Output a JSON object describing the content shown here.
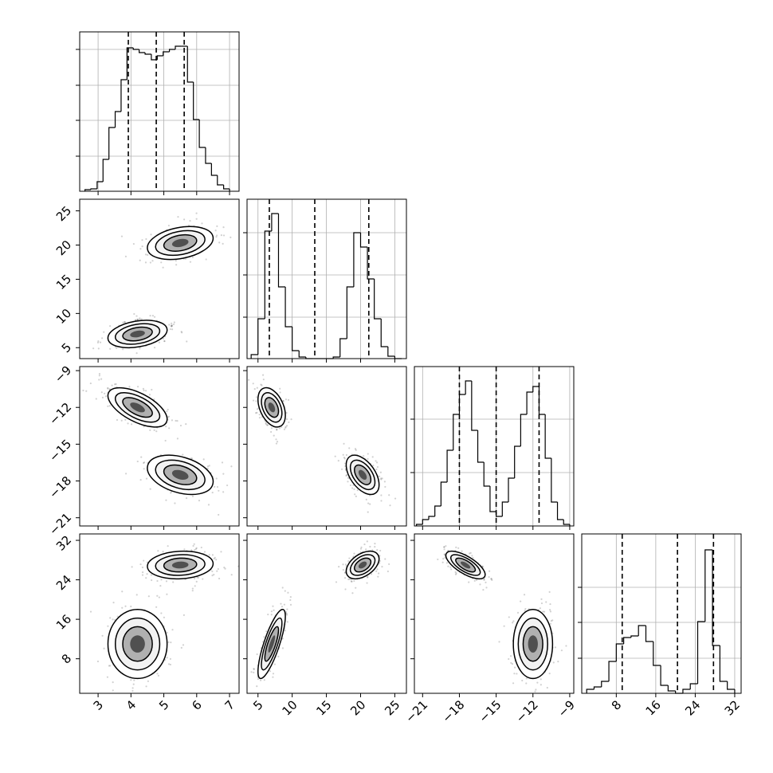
{
  "chart_data": {
    "type": "corner",
    "params": [
      {
        "lim": [
          2.44,
          7.29
        ],
        "ticks": [
          3,
          4,
          5,
          6,
          7
        ],
        "bins": [
          2.6,
          2.78,
          2.97,
          3.15,
          3.33,
          3.52,
          3.7,
          3.88,
          4.07,
          4.25,
          4.43,
          4.62,
          4.8,
          4.98,
          5.17,
          5.35,
          5.53,
          5.72,
          5.9,
          6.08,
          6.27,
          6.45,
          6.63,
          6.82,
          7.0
        ],
        "counts": [
          2,
          3,
          12,
          40,
          80,
          100,
          140,
          180,
          178,
          174,
          172,
          165,
          170,
          175,
          178,
          182,
          182,
          137,
          90,
          55,
          35,
          20,
          8,
          3
        ],
        "quantiles": [
          3.92,
          4.77,
          5.62
        ],
        "hist_ylim": [
          0,
          200
        ],
        "hist_yticks": [
          44,
          89,
          133,
          178
        ]
      },
      {
        "lim": [
          3.4,
          26.7
        ],
        "ticks": [
          5,
          10,
          15,
          20,
          25
        ],
        "bins": [
          4,
          5,
          6,
          7,
          8,
          9,
          10,
          11,
          12,
          13,
          14,
          15,
          16,
          17,
          18,
          19,
          20,
          21,
          22,
          23,
          24,
          25,
          26
        ],
        "counts": [
          5,
          50,
          160,
          182,
          90,
          40,
          10,
          2,
          0,
          0,
          0,
          0,
          2,
          25,
          90,
          158,
          140,
          100,
          50,
          15,
          3,
          0
        ],
        "quantiles": [
          6.66,
          13.3,
          21.2
        ],
        "hist_ylim": [
          0,
          200
        ],
        "hist_yticks": [
          52,
          105,
          158
        ]
      },
      {
        "lim": [
          -21.67,
          -8.67
        ],
        "ticks": [
          {
            "value": -21,
            "label": "−21"
          },
          {
            "value": -18,
            "label": "−18"
          },
          {
            "value": -15,
            "label": "−15"
          },
          {
            "value": -12,
            "label": "−12"
          },
          {
            "value": -9,
            "label": "−9"
          }
        ],
        "bins": [
          -21.5,
          -21,
          -20.5,
          -20,
          -19.5,
          -19,
          -18.5,
          -18,
          -17.5,
          -17,
          -16.5,
          -16,
          -15.5,
          -15,
          -14.5,
          -14,
          -13.5,
          -13,
          -12.5,
          -12,
          -11.5,
          -11,
          -10.5,
          -10,
          -9.5,
          -9
        ],
        "counts": [
          2,
          8,
          12,
          25,
          55,
          95,
          140,
          165,
          182,
          120,
          80,
          50,
          18,
          12,
          30,
          60,
          100,
          140,
          168,
          175,
          140,
          85,
          30,
          8,
          2
        ],
        "quantiles": [
          -18.0,
          -15.0,
          -11.5
        ],
        "hist_ylim": [
          0,
          200
        ],
        "hist_yticks": [
          67,
          134
        ]
      },
      {
        "lim": [
          1,
          33.3
        ],
        "ticks": [
          8,
          16,
          24,
          32
        ],
        "bins": [
          2,
          3.5,
          5,
          6.5,
          8,
          9.5,
          11,
          12.5,
          14,
          15.5,
          17,
          18.5,
          20,
          21.5,
          23,
          24.5,
          26,
          27.5,
          29,
          30.5,
          32
        ],
        "counts": [
          5,
          8,
          15,
          40,
          62,
          70,
          72,
          85,
          65,
          35,
          10,
          3,
          0,
          5,
          12,
          90,
          180,
          60,
          15,
          5
        ],
        "quantiles": [
          9.2,
          20.4,
          27.7
        ],
        "hist_ylim": [
          0,
          200
        ],
        "hist_yticks": [
          44,
          89,
          133
        ]
      }
    ],
    "modes": [
      {
        "mean": [
          4.2,
          7.0,
          -12.0,
          11.0
        ],
        "sd": [
          0.45,
          1.0,
          0.8,
          3.5
        ]
      },
      {
        "mean": [
          5.5,
          20.3,
          -17.5,
          27.0
        ],
        "sd": [
          0.5,
          1.2,
          0.8,
          1.4
        ]
      }
    ],
    "rho": [
      [],
      [
        [
          0.3,
          0.3
        ]
      ],
      [
        [
          -0.6,
          -0.35
        ],
        [
          -0.4,
          -0.5
        ]
      ],
      [
        [
          0.0,
          0.1
        ],
        [
          0.8,
          0.45
        ],
        [
          0.0,
          -0.7
        ]
      ]
    ]
  }
}
